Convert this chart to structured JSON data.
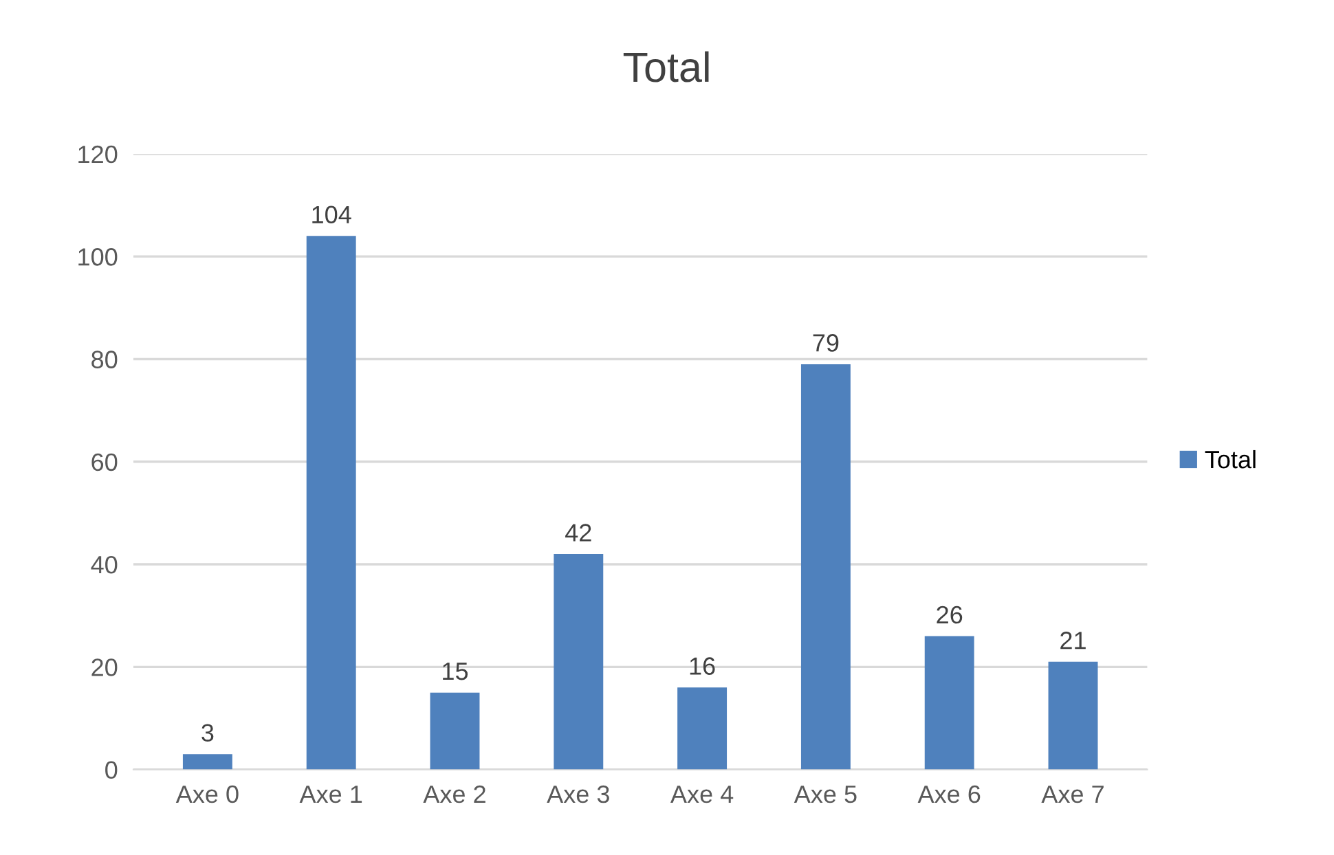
{
  "chart_data": {
    "type": "bar",
    "title": "Total",
    "categories": [
      "Axe 0",
      "Axe 1",
      "Axe 2",
      "Axe 3",
      "Axe 4",
      "Axe 5",
      "Axe 6",
      "Axe 7"
    ],
    "series": [
      {
        "name": "Total",
        "color": "#4f81bd",
        "values": [
          3,
          104,
          15,
          42,
          16,
          79,
          26,
          21
        ]
      }
    ],
    "ylim": [
      0,
      120
    ],
    "yticks": [
      0,
      20,
      40,
      60,
      80,
      100,
      120
    ],
    "grid": "y",
    "legend": "right",
    "data_labels": true
  }
}
